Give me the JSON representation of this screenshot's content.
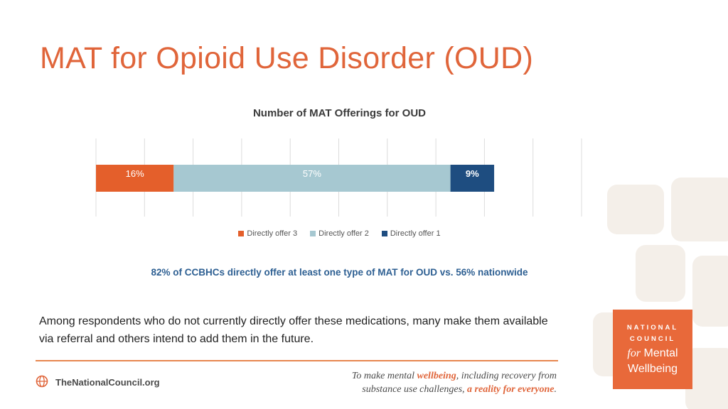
{
  "slide": {
    "title": "MAT for Opioid Use Disorder (OUD)",
    "body_text": "Among respondents who do not currently directly offer these medications, many make them available via referral and others intend to add them in the future."
  },
  "chart_data": {
    "type": "bar",
    "orientation": "horizontal",
    "stacked": true,
    "title": "Number of MAT Offerings for OUD",
    "xlabel": "",
    "ylabel": "",
    "xlim": [
      0,
      100
    ],
    "grid": true,
    "legend_position": "bottom",
    "series": [
      {
        "name": "Directly offer 3",
        "values": [
          16
        ],
        "label": "16%",
        "color": "#e45f2b"
      },
      {
        "name": "Directly offer 2",
        "values": [
          57
        ],
        "label": "57%",
        "color": "#a6c8d1"
      },
      {
        "name": "Directly offer 1",
        "values": [
          9
        ],
        "label": "9%",
        "color": "#1e4d80"
      }
    ]
  },
  "note": "82% of CCBHCs directly offer at least one type of MAT for OUD vs. 56% nationwide",
  "footer": {
    "website": "TheNationalCouncil.org",
    "tagline_part1": "To make mental ",
    "tagline_accent1": "wellbeing",
    "tagline_part2": ", including recovery from",
    "tagline_part3": "substance use challenges, ",
    "tagline_accent2": "a reality for everyone",
    "tagline_end": "."
  },
  "logo": {
    "line1": "NATIONAL",
    "line2": "COUNCIL",
    "line3_for": "for",
    "line3_rest": " Mental",
    "line4": "Wellbeing"
  },
  "colors": {
    "accent": "#e0653a",
    "note_blue": "#2d5f92"
  },
  "icons": {
    "footer": "globe-icon"
  }
}
